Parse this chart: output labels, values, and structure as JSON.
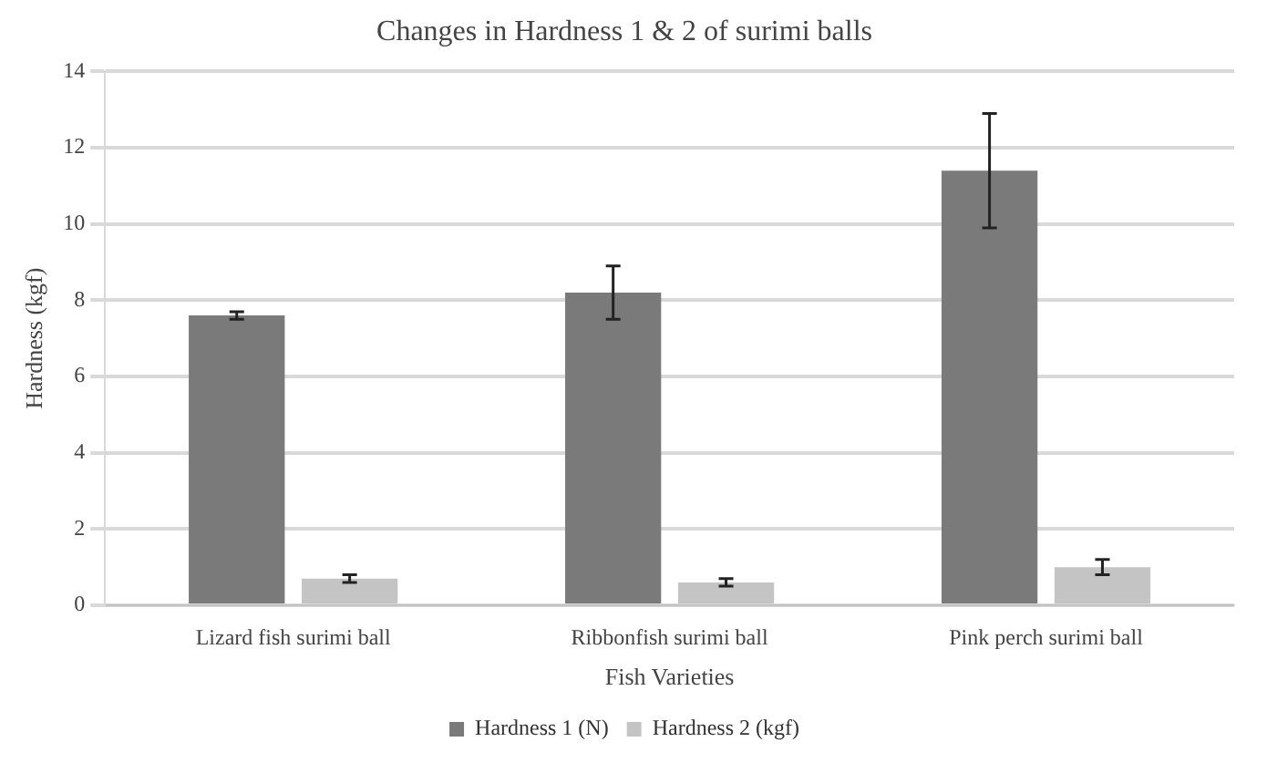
{
  "chart_data": {
    "type": "bar",
    "title": "Changes in Hardness 1 & 2 of surimi balls",
    "xlabel": "Fish Varieties",
    "ylabel": "Hardness (kgf)",
    "categories": [
      "Lizard fish surimi ball",
      "Ribbonfish surimi ball",
      "Pink perch surimi ball"
    ],
    "series": [
      {
        "name": "Hardness 1 (N)",
        "color": "#7a7a7a",
        "values": [
          7.6,
          8.2,
          11.4
        ],
        "errors": [
          0.1,
          0.7,
          1.5
        ]
      },
      {
        "name": "Hardness 2 (kgf)",
        "color": "#c4c4c4",
        "values": [
          0.7,
          0.6,
          1.0
        ],
        "errors": [
          0.1,
          0.1,
          0.2
        ]
      }
    ],
    "ylim": [
      0,
      14
    ],
    "yticks": [
      0,
      2,
      4,
      6,
      8,
      10,
      12,
      14
    ],
    "grid": "y",
    "legend": "bottom"
  }
}
